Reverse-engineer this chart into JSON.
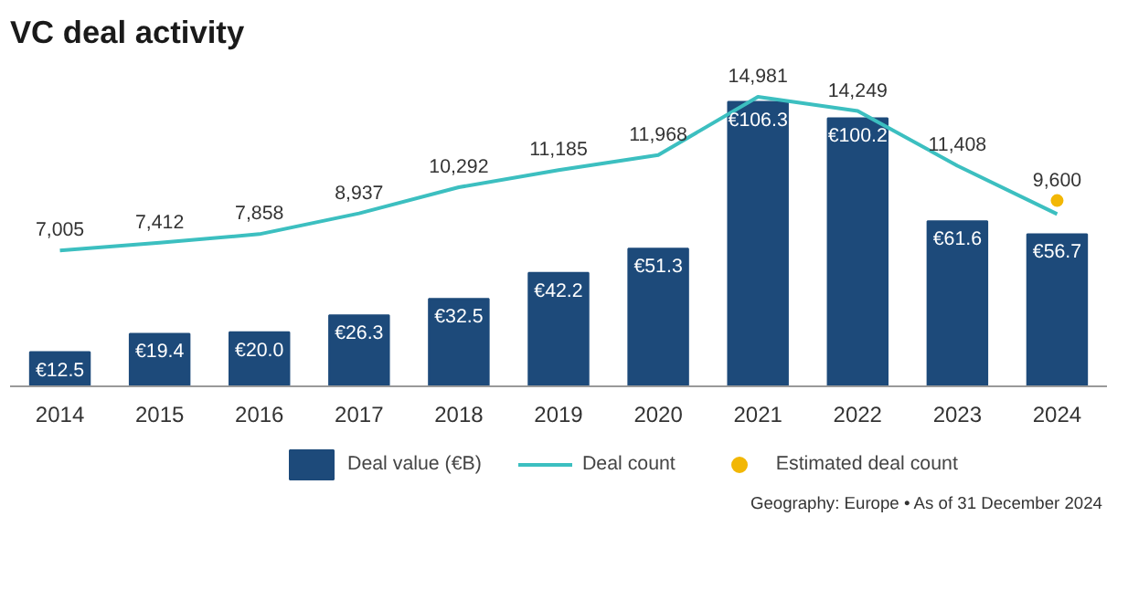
{
  "chart_data": {
    "type": "bar",
    "title": "VC deal activity",
    "categories": [
      "2014",
      "2015",
      "2016",
      "2017",
      "2018",
      "2019",
      "2020",
      "2021",
      "2022",
      "2023",
      "2024"
    ],
    "series": [
      {
        "name": "Deal value (€B)",
        "color": "#1d4a7a",
        "values": [
          12.5,
          19.4,
          20.0,
          26.3,
          32.5,
          42.2,
          51.3,
          106.3,
          100.2,
          61.6,
          56.7
        ],
        "value_labels": [
          "€12.5",
          "€19.4",
          "€20.0",
          "€26.3",
          "€32.5",
          "€42.2",
          "€51.3",
          "€106.3",
          "€100.2",
          "€61.6",
          "€56.7"
        ]
      },
      {
        "name": "Deal count",
        "type": "line",
        "axis": "y2",
        "marker": "none",
        "color": "#3cbfc0",
        "values": [
          7005,
          7412,
          7858,
          8937,
          10292,
          11185,
          11968,
          14981,
          14249,
          11408,
          8900
        ],
        "value_labels": [
          "7,005",
          "7,412",
          "7,858",
          "8,937",
          "10,292",
          "11,185",
          "11,968",
          "14,981",
          "14,249",
          "11,408",
          null
        ]
      },
      {
        "name": "Estimated deal count",
        "type": "scatter",
        "axis": "y2",
        "marker": "circle",
        "color": "#f2b705",
        "values": [
          null,
          null,
          null,
          null,
          null,
          null,
          null,
          null,
          null,
          null,
          9600
        ],
        "value_labels": [
          null,
          null,
          null,
          null,
          null,
          null,
          null,
          null,
          null,
          null,
          "9,600"
        ]
      }
    ],
    "tick_labels": "x",
    "grid": false,
    "legend": "bottom",
    "annotations": [
      "Geography: Europe • As of 31 December 2024"
    ]
  }
}
